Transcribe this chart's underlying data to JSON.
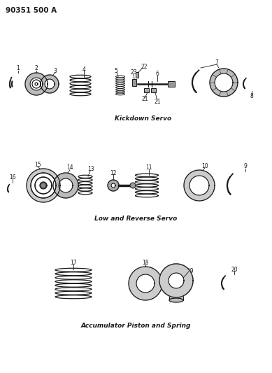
{
  "title_code": "90351 500 A",
  "background_color": "#ffffff",
  "line_color": "#1a1a1a",
  "section1_label": "Kickdown Servo",
  "section2_label": "Low and Reverse Servo",
  "section3_label": "Accumulator Piston and Spring",
  "fig_width": 3.89,
  "fig_height": 5.33,
  "dpi": 100
}
